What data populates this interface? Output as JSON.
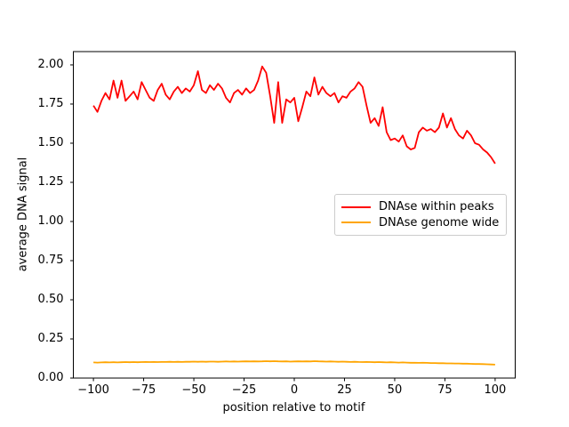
{
  "figure": {
    "background": "#ffffff",
    "axes_color": "#000000",
    "legend_edge_color": "#cccccc"
  },
  "chart_data": {
    "type": "line",
    "title": "",
    "xlabel": "position relative to motif",
    "ylabel": "average DNA signal",
    "xlim": [
      -110,
      110
    ],
    "ylim": [
      0,
      2.085
    ],
    "grid": false,
    "legend_position": "center right",
    "x_ticks": [
      -100,
      -75,
      -50,
      -25,
      0,
      25,
      50,
      75,
      100
    ],
    "x_tick_labels": [
      "−100",
      "−75",
      "−50",
      "−25",
      "0",
      "25",
      "50",
      "75",
      "100"
    ],
    "y_ticks": [
      0,
      0.25,
      0.5,
      0.75,
      1.0,
      1.25,
      1.5,
      1.75,
      2.0
    ],
    "y_tick_labels": [
      "0.00",
      "0.25",
      "0.50",
      "0.75",
      "1.00",
      "1.25",
      "1.50",
      "1.75",
      "2.00"
    ],
    "x": [
      -100,
      -98,
      -96,
      -94,
      -92,
      -90,
      -88,
      -86,
      -84,
      -82,
      -80,
      -78,
      -76,
      -74,
      -72,
      -70,
      -68,
      -66,
      -64,
      -62,
      -60,
      -58,
      -56,
      -54,
      -52,
      -50,
      -48,
      -46,
      -44,
      -42,
      -40,
      -38,
      -36,
      -34,
      -32,
      -30,
      -28,
      -26,
      -24,
      -22,
      -20,
      -18,
      -16,
      -14,
      -12,
      -10,
      -8,
      -6,
      -4,
      -2,
      0,
      2,
      4,
      6,
      8,
      10,
      12,
      14,
      16,
      18,
      20,
      22,
      24,
      26,
      28,
      30,
      32,
      34,
      36,
      38,
      40,
      42,
      44,
      46,
      48,
      50,
      52,
      54,
      56,
      58,
      60,
      62,
      64,
      66,
      68,
      70,
      72,
      74,
      76,
      78,
      80,
      82,
      84,
      86,
      88,
      90,
      92,
      94,
      96,
      98,
      100
    ],
    "series": [
      {
        "name": "DNAse within peaks",
        "color": "#ff0000",
        "values": [
          1.74,
          1.7,
          1.77,
          1.82,
          1.78,
          1.9,
          1.79,
          1.9,
          1.77,
          1.8,
          1.83,
          1.78,
          1.89,
          1.84,
          1.79,
          1.77,
          1.84,
          1.88,
          1.81,
          1.78,
          1.83,
          1.86,
          1.82,
          1.85,
          1.83,
          1.87,
          1.96,
          1.84,
          1.82,
          1.87,
          1.84,
          1.88,
          1.85,
          1.79,
          1.76,
          1.82,
          1.84,
          1.81,
          1.85,
          1.82,
          1.84,
          1.9,
          1.99,
          1.95,
          1.8,
          1.63,
          1.89,
          1.63,
          1.78,
          1.76,
          1.79,
          1.64,
          1.73,
          1.83,
          1.8,
          1.92,
          1.81,
          1.86,
          1.82,
          1.8,
          1.82,
          1.76,
          1.8,
          1.79,
          1.83,
          1.85,
          1.89,
          1.86,
          1.74,
          1.63,
          1.66,
          1.61,
          1.73,
          1.57,
          1.52,
          1.53,
          1.51,
          1.55,
          1.48,
          1.46,
          1.47,
          1.57,
          1.6,
          1.58,
          1.59,
          1.57,
          1.6,
          1.69,
          1.6,
          1.66,
          1.59,
          1.55,
          1.53,
          1.58,
          1.55,
          1.5,
          1.49,
          1.46,
          1.44,
          1.41,
          1.37
        ]
      },
      {
        "name": "DNAse genome wide",
        "color": "#ffa500",
        "values": [
          0.1,
          0.099,
          0.1,
          0.101,
          0.1,
          0.101,
          0.1,
          0.101,
          0.102,
          0.101,
          0.102,
          0.101,
          0.102,
          0.103,
          0.102,
          0.103,
          0.102,
          0.103,
          0.103,
          0.104,
          0.103,
          0.104,
          0.103,
          0.104,
          0.104,
          0.105,
          0.104,
          0.105,
          0.104,
          0.105,
          0.105,
          0.104,
          0.105,
          0.106,
          0.105,
          0.106,
          0.105,
          0.106,
          0.107,
          0.106,
          0.107,
          0.106,
          0.107,
          0.108,
          0.107,
          0.108,
          0.107,
          0.106,
          0.107,
          0.105,
          0.106,
          0.107,
          0.106,
          0.107,
          0.106,
          0.108,
          0.107,
          0.106,
          0.105,
          0.106,
          0.105,
          0.104,
          0.105,
          0.104,
          0.103,
          0.104,
          0.103,
          0.102,
          0.103,
          0.102,
          0.101,
          0.102,
          0.101,
          0.1,
          0.101,
          0.1,
          0.099,
          0.1,
          0.099,
          0.098,
          0.098,
          0.097,
          0.098,
          0.097,
          0.096,
          0.096,
          0.095,
          0.095,
          0.094,
          0.094,
          0.093,
          0.093,
          0.092,
          0.092,
          0.091,
          0.09,
          0.09,
          0.089,
          0.088,
          0.087,
          0.086
        ]
      }
    ]
  }
}
